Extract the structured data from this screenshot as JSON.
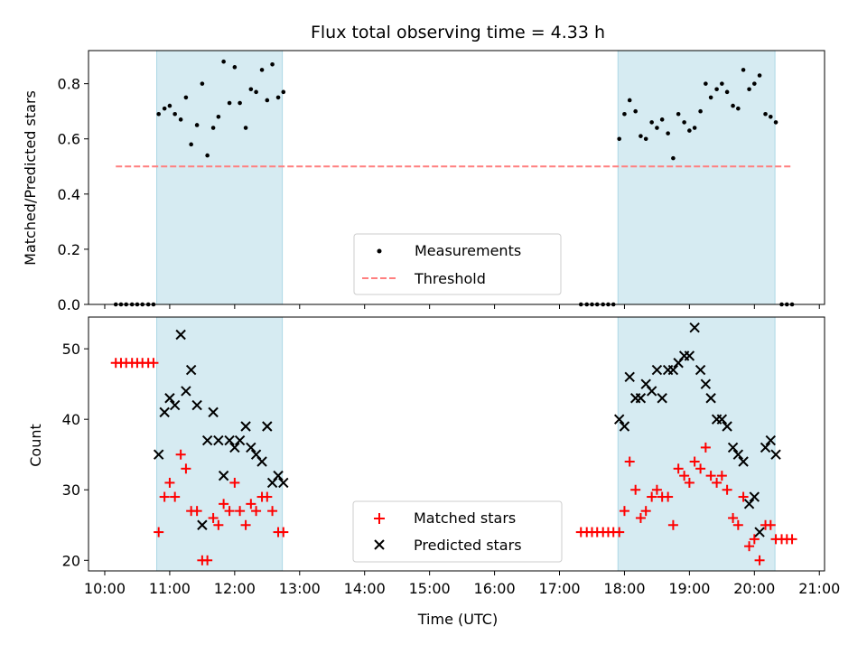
{
  "chart_data": {
    "title": "Flux total observing time = 4.33 h",
    "xlabel": "Time (UTC)",
    "x_ticks": [
      "10:00",
      "11:00",
      "12:00",
      "13:00",
      "14:00",
      "15:00",
      "16:00",
      "17:00",
      "18:00",
      "19:00",
      "20:00",
      "21:00"
    ],
    "xlim_hours": [
      9.75,
      21.08
    ],
    "observing_windows": [
      {
        "start": "10:48",
        "end": "12:44"
      },
      {
        "start": "17:54",
        "end": "20:19"
      }
    ],
    "colors": {
      "shade": "#add8e6",
      "matched": "#ff0000",
      "predicted": "#000000",
      "threshold": "#ff7f7f",
      "measurement": "#000000"
    },
    "panels": [
      {
        "type": "scatter",
        "ylabel": "Matched/Predicted stars",
        "ylim": [
          0,
          0.92
        ],
        "y_ticks": [
          "0.0",
          "0.2",
          "0.4",
          "0.6",
          "0.8"
        ],
        "y_tick_values": [
          0,
          0.2,
          0.4,
          0.6,
          0.8
        ],
        "threshold": {
          "y": 0.5,
          "x_start": 10.17,
          "x_end": 20.58
        },
        "legend": {
          "position": "lower center",
          "entries": [
            "Measurements",
            "Threshold"
          ]
        },
        "series": [
          {
            "name": "Measurements",
            "marker": "dot",
            "points": [
              [
                10.17,
                0
              ],
              [
                10.25,
                0
              ],
              [
                10.33,
                0
              ],
              [
                10.42,
                0
              ],
              [
                10.5,
                0
              ],
              [
                10.58,
                0
              ],
              [
                10.67,
                0
              ],
              [
                10.75,
                0
              ],
              [
                10.83,
                0.69
              ],
              [
                10.92,
                0.71
              ],
              [
                11.0,
                0.72
              ],
              [
                11.08,
                0.69
              ],
              [
                11.17,
                0.67
              ],
              [
                11.25,
                0.75
              ],
              [
                11.33,
                0.58
              ],
              [
                11.42,
                0.65
              ],
              [
                11.5,
                0.8
              ],
              [
                11.58,
                0.54
              ],
              [
                11.67,
                0.64
              ],
              [
                11.75,
                0.68
              ],
              [
                11.83,
                0.88
              ],
              [
                11.92,
                0.73
              ],
              [
                12.0,
                0.86
              ],
              [
                12.08,
                0.73
              ],
              [
                12.17,
                0.64
              ],
              [
                12.25,
                0.78
              ],
              [
                12.33,
                0.77
              ],
              [
                12.42,
                0.85
              ],
              [
                12.5,
                0.74
              ],
              [
                12.58,
                0.87
              ],
              [
                12.67,
                0.75
              ],
              [
                12.75,
                0.77
              ],
              [
                17.33,
                0
              ],
              [
                17.42,
                0
              ],
              [
                17.5,
                0
              ],
              [
                17.58,
                0
              ],
              [
                17.67,
                0
              ],
              [
                17.75,
                0
              ],
              [
                17.83,
                0
              ],
              [
                17.92,
                0.6
              ],
              [
                18.0,
                0.69
              ],
              [
                18.08,
                0.74
              ],
              [
                18.17,
                0.7
              ],
              [
                18.25,
                0.61
              ],
              [
                18.33,
                0.6
              ],
              [
                18.42,
                0.66
              ],
              [
                18.5,
                0.64
              ],
              [
                18.58,
                0.67
              ],
              [
                18.67,
                0.62
              ],
              [
                18.75,
                0.53
              ],
              [
                18.83,
                0.69
              ],
              [
                18.92,
                0.66
              ],
              [
                19.0,
                0.63
              ],
              [
                19.08,
                0.64
              ],
              [
                19.17,
                0.7
              ],
              [
                19.25,
                0.8
              ],
              [
                19.33,
                0.75
              ],
              [
                19.42,
                0.78
              ],
              [
                19.5,
                0.8
              ],
              [
                19.58,
                0.77
              ],
              [
                19.67,
                0.72
              ],
              [
                19.75,
                0.71
              ],
              [
                19.83,
                0.85
              ],
              [
                19.92,
                0.78
              ],
              [
                20.0,
                0.8
              ],
              [
                20.08,
                0.83
              ],
              [
                20.17,
                0.69
              ],
              [
                20.25,
                0.68
              ],
              [
                20.33,
                0.66
              ],
              [
                20.42,
                0
              ],
              [
                20.5,
                0
              ],
              [
                20.58,
                0
              ]
            ]
          }
        ]
      },
      {
        "type": "scatter",
        "ylabel": "Count",
        "ylim": [
          18.5,
          54.5
        ],
        "y_ticks": [
          "20",
          "30",
          "40",
          "50"
        ],
        "y_tick_values": [
          20,
          30,
          40,
          50
        ],
        "legend": {
          "position": "lower center",
          "entries": [
            "Matched stars",
            "Predicted stars"
          ]
        },
        "series": [
          {
            "name": "Matched stars",
            "marker": "plus",
            "points": [
              [
                10.17,
                48
              ],
              [
                10.25,
                48
              ],
              [
                10.33,
                48
              ],
              [
                10.42,
                48
              ],
              [
                10.5,
                48
              ],
              [
                10.58,
                48
              ],
              [
                10.67,
                48
              ],
              [
                10.75,
                48
              ],
              [
                10.83,
                24
              ],
              [
                10.92,
                29
              ],
              [
                11.0,
                31
              ],
              [
                11.08,
                29
              ],
              [
                11.17,
                35
              ],
              [
                11.25,
                33
              ],
              [
                11.33,
                27
              ],
              [
                11.42,
                27
              ],
              [
                11.5,
                20
              ],
              [
                11.58,
                20
              ],
              [
                11.67,
                26
              ],
              [
                11.75,
                25
              ],
              [
                11.83,
                28
              ],
              [
                11.92,
                27
              ],
              [
                12.0,
                31
              ],
              [
                12.08,
                27
              ],
              [
                12.17,
                25
              ],
              [
                12.25,
                28
              ],
              [
                12.33,
                27
              ],
              [
                12.42,
                29
              ],
              [
                12.5,
                29
              ],
              [
                12.58,
                27
              ],
              [
                12.67,
                24
              ],
              [
                12.75,
                24
              ],
              [
                17.33,
                24
              ],
              [
                17.42,
                24
              ],
              [
                17.5,
                24
              ],
              [
                17.58,
                24
              ],
              [
                17.67,
                24
              ],
              [
                17.75,
                24
              ],
              [
                17.83,
                24
              ],
              [
                17.92,
                24
              ],
              [
                18.0,
                27
              ],
              [
                18.08,
                34
              ],
              [
                18.17,
                30
              ],
              [
                18.25,
                26
              ],
              [
                18.33,
                27
              ],
              [
                18.42,
                29
              ],
              [
                18.5,
                30
              ],
              [
                18.58,
                29
              ],
              [
                18.67,
                29
              ],
              [
                18.75,
                25
              ],
              [
                18.83,
                33
              ],
              [
                18.92,
                32
              ],
              [
                19.0,
                31
              ],
              [
                19.08,
                34
              ],
              [
                19.17,
                33
              ],
              [
                19.25,
                36
              ],
              [
                19.33,
                32
              ],
              [
                19.42,
                31
              ],
              [
                19.5,
                32
              ],
              [
                19.58,
                30
              ],
              [
                19.67,
                26
              ],
              [
                19.75,
                25
              ],
              [
                19.83,
                29
              ],
              [
                19.92,
                22
              ],
              [
                20.0,
                23
              ],
              [
                20.08,
                20
              ],
              [
                20.17,
                25
              ],
              [
                20.25,
                25
              ],
              [
                20.33,
                23
              ],
              [
                20.42,
                23
              ],
              [
                20.5,
                23
              ],
              [
                20.58,
                23
              ]
            ]
          },
          {
            "name": "Predicted stars",
            "marker": "x",
            "points": [
              [
                10.83,
                35
              ],
              [
                10.92,
                41
              ],
              [
                11.0,
                43
              ],
              [
                11.08,
                42
              ],
              [
                11.17,
                52
              ],
              [
                11.25,
                44
              ],
              [
                11.33,
                47
              ],
              [
                11.42,
                42
              ],
              [
                11.5,
                25
              ],
              [
                11.58,
                37
              ],
              [
                11.67,
                41
              ],
              [
                11.75,
                37
              ],
              [
                11.83,
                32
              ],
              [
                11.92,
                37
              ],
              [
                12.0,
                36
              ],
              [
                12.08,
                37
              ],
              [
                12.17,
                39
              ],
              [
                12.25,
                36
              ],
              [
                12.33,
                35
              ],
              [
                12.42,
                34
              ],
              [
                12.5,
                39
              ],
              [
                12.58,
                31
              ],
              [
                12.67,
                32
              ],
              [
                12.75,
                31
              ],
              [
                17.92,
                40
              ],
              [
                18.0,
                39
              ],
              [
                18.08,
                46
              ],
              [
                18.17,
                43
              ],
              [
                18.25,
                43
              ],
              [
                18.33,
                45
              ],
              [
                18.42,
                44
              ],
              [
                18.5,
                47
              ],
              [
                18.58,
                43
              ],
              [
                18.67,
                47
              ],
              [
                18.75,
                47
              ],
              [
                18.83,
                48
              ],
              [
                18.92,
                49
              ],
              [
                19.0,
                49
              ],
              [
                19.08,
                53
              ],
              [
                19.17,
                47
              ],
              [
                19.25,
                45
              ],
              [
                19.33,
                43
              ],
              [
                19.42,
                40
              ],
              [
                19.5,
                40
              ],
              [
                19.58,
                39
              ],
              [
                19.67,
                36
              ],
              [
                19.75,
                35
              ],
              [
                19.83,
                34
              ],
              [
                19.92,
                28
              ],
              [
                20.0,
                29
              ],
              [
                20.08,
                24
              ],
              [
                20.17,
                36
              ],
              [
                20.25,
                37
              ],
              [
                20.33,
                35
              ]
            ]
          }
        ]
      }
    ]
  }
}
